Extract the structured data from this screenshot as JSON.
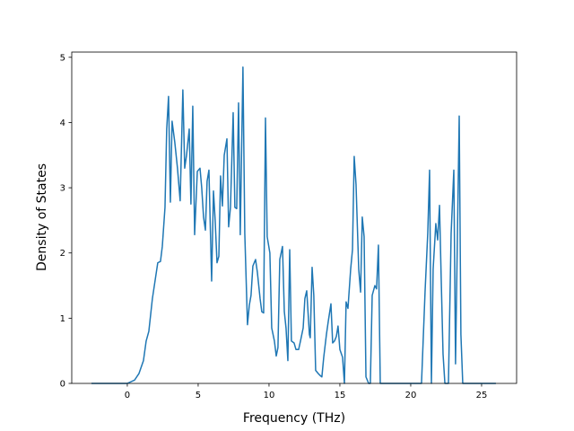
{
  "chart_data": {
    "type": "line",
    "xlabel": "Frequency (THz)",
    "ylabel": "Density of States",
    "x": [
      -2.53,
      0,
      0.51,
      0.82,
      1.14,
      1.33,
      1.52,
      1.77,
      2.15,
      2.34,
      2.47,
      2.66,
      2.78,
      2.91,
      3.04,
      3.16,
      3.35,
      3.54,
      3.73,
      3.92,
      4.05,
      4.18,
      4.37,
      4.49,
      4.62,
      4.75,
      4.94,
      5.13,
      5.25,
      5.38,
      5.51,
      5.63,
      5.76,
      5.95,
      6.08,
      6.2,
      6.33,
      6.46,
      6.58,
      6.71,
      6.84,
      7.03,
      7.15,
      7.28,
      7.47,
      7.59,
      7.72,
      7.85,
      7.97,
      8.16,
      8.29,
      8.48,
      8.61,
      8.73,
      8.86,
      9.05,
      9.18,
      9.37,
      9.49,
      9.62,
      9.75,
      9.87,
      10.06,
      10.19,
      10.38,
      10.51,
      10.63,
      10.76,
      10.95,
      11.08,
      11.2,
      11.33,
      11.46,
      11.58,
      11.77,
      11.9,
      12.09,
      12.22,
      12.41,
      12.53,
      12.66,
      12.85,
      12.91,
      13.04,
      13.16,
      13.29,
      13.48,
      13.61,
      13.73,
      13.86,
      14.05,
      14.18,
      14.37,
      14.49,
      14.62,
      14.75,
      14.87,
      15,
      15.19,
      15.32,
      15.44,
      15.57,
      15.76,
      15.89,
      16.01,
      16.14,
      16.33,
      16.46,
      16.58,
      16.71,
      16.84,
      17.03,
      17.15,
      17.28,
      17.47,
      17.59,
      17.72,
      17.85,
      20.76,
      21.01,
      21.2,
      21.33,
      21.46,
      21.58,
      21.77,
      21.9,
      22.03,
      22.15,
      22.28,
      22.41,
      22.66,
      22.85,
      23.04,
      23.16,
      23.42,
      23.54,
      23.67,
      26.01
    ],
    "series": [
      {
        "color": "#1f77b4",
        "values": [
          0,
          0,
          0.05,
          0.15,
          0.35,
          0.65,
          0.8,
          1.3,
          1.85,
          1.87,
          2.1,
          2.7,
          3.9,
          4.4,
          2.78,
          4.02,
          3.7,
          3.3,
          2.8,
          4.5,
          3.3,
          3.5,
          3.9,
          2.75,
          4.25,
          2.28,
          3.25,
          3.3,
          3.0,
          2.55,
          2.35,
          3.1,
          3.27,
          1.57,
          2.95,
          2.5,
          1.85,
          1.95,
          3.18,
          2.72,
          3.5,
          3.75,
          2.4,
          2.7,
          4.15,
          2.7,
          2.68,
          4.3,
          2.28,
          4.85,
          2.3,
          0.9,
          1.2,
          1.35,
          1.8,
          1.9,
          1.7,
          1.3,
          1.1,
          1.08,
          4.07,
          2.25,
          2.0,
          0.85,
          0.65,
          0.42,
          0.55,
          1.9,
          2.1,
          1.1,
          0.85,
          0.35,
          2.05,
          0.65,
          0.62,
          0.52,
          0.52,
          0.65,
          0.85,
          1.3,
          1.42,
          0.75,
          0.7,
          1.78,
          1.35,
          0.2,
          0.15,
          0.12,
          0.1,
          0.4,
          0.75,
          0.95,
          1.22,
          0.62,
          0.65,
          0.72,
          0.88,
          0.52,
          0.4,
          0,
          1.25,
          1.15,
          1.75,
          2.05,
          3.48,
          3.05,
          1.75,
          1.4,
          2.55,
          2.25,
          0.1,
          0,
          0,
          1.35,
          1.5,
          1.45,
          2.12,
          0,
          0,
          1.4,
          2.3,
          3.27,
          0,
          1.75,
          2.45,
          2.2,
          2.73,
          1.6,
          0.45,
          0,
          0,
          2.3,
          3.27,
          0.3,
          4.1,
          0.75,
          0,
          0
        ]
      }
    ],
    "xlim": [
      -3.92,
      27.47
    ],
    "ylim": [
      0,
      5.08
    ],
    "xticks": [
      0,
      5,
      10,
      15,
      20,
      25
    ],
    "yticks": [
      0,
      1,
      2,
      3,
      4,
      5
    ],
    "grid": false
  }
}
